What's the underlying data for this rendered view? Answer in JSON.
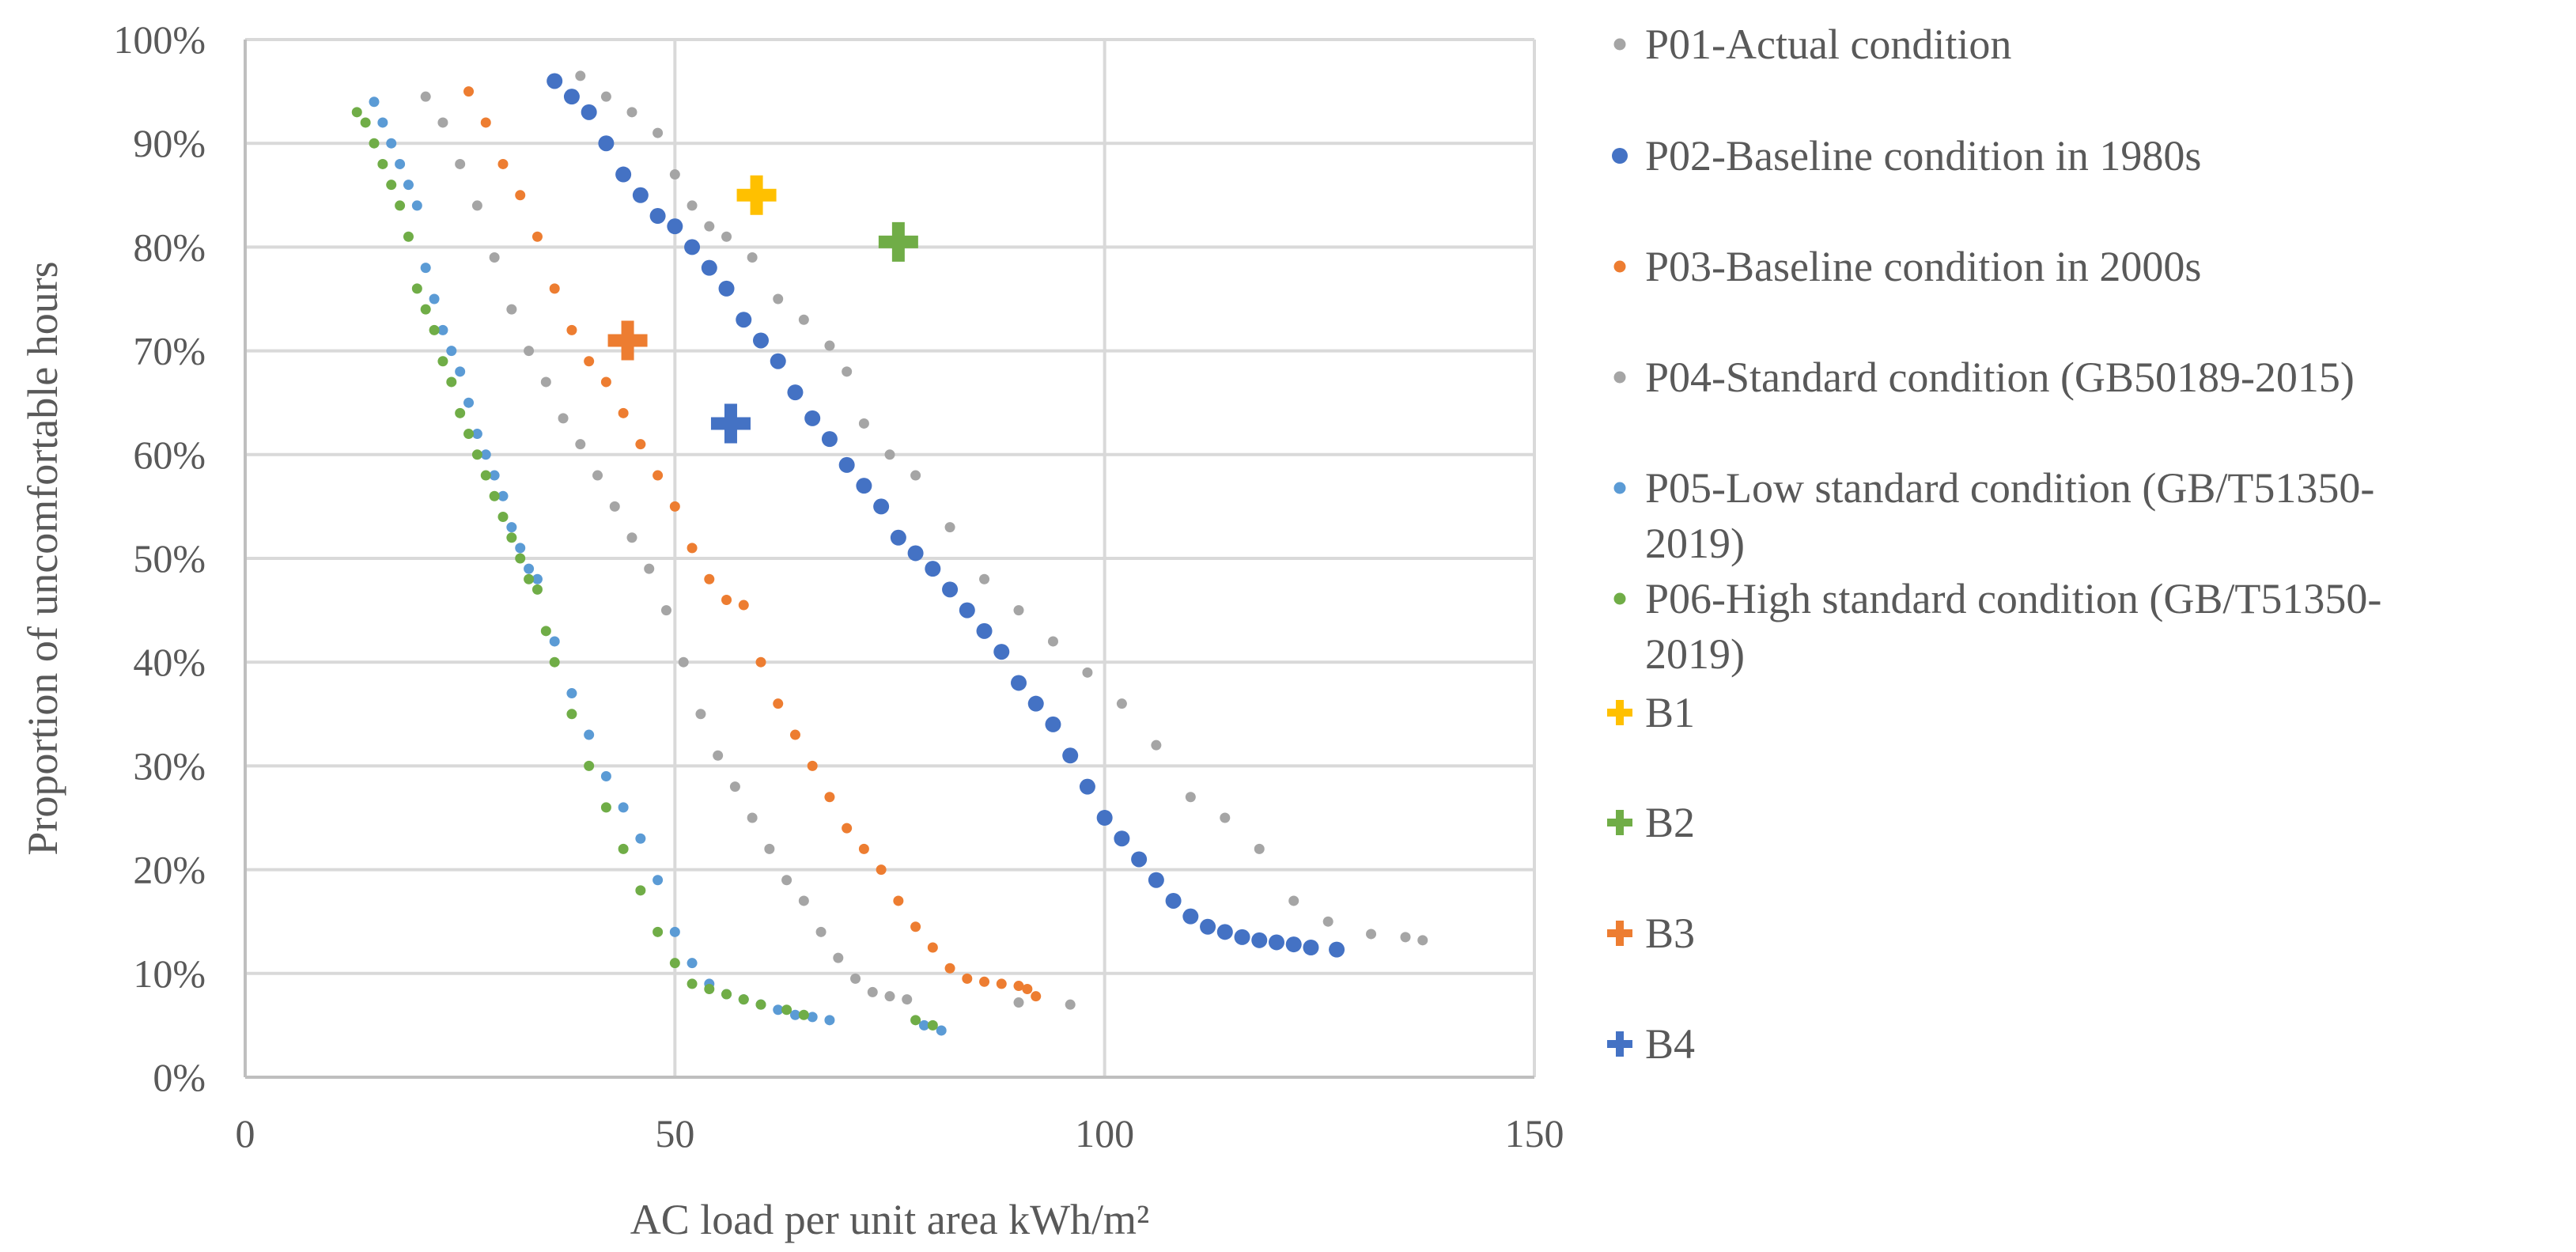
{
  "chart_data": {
    "type": "scatter",
    "title": "",
    "xlabel": "AC load per unit area kWh/m²",
    "ylabel": "Proportion of uncomfortable hours",
    "xlim": [
      0,
      150
    ],
    "ylim": [
      0,
      100
    ],
    "x_ticks": [
      0,
      50,
      100,
      150
    ],
    "x_tick_labels": [
      "0",
      "50",
      "100",
      "150"
    ],
    "y_ticks": [
      0,
      10,
      20,
      30,
      40,
      50,
      60,
      70,
      80,
      90,
      100
    ],
    "y_tick_labels": [
      "0%",
      "10%",
      "20%",
      "30%",
      "40%",
      "50%",
      "60%",
      "70%",
      "80%",
      "90%",
      "100%"
    ],
    "grid": true,
    "legend_position": "right",
    "series": [
      {
        "name": "P01-Actual condition",
        "marker": "dot",
        "size": "small",
        "color": "#A5A5A5",
        "legend_lines": [
          "P01-Actual condition"
        ],
        "x": [
          39,
          42,
          45,
          48,
          50,
          52,
          54,
          56,
          59,
          62,
          65,
          68,
          70,
          72,
          75,
          78,
          82,
          86,
          90,
          94,
          98,
          102,
          106,
          110,
          114,
          118,
          122,
          126,
          131,
          135,
          137
        ],
        "y": [
          96.5,
          94.5,
          93,
          91,
          87,
          84,
          82,
          81,
          79,
          75,
          73,
          70.5,
          68,
          63,
          60,
          58,
          53,
          48,
          45,
          42,
          39,
          36,
          32,
          27,
          25,
          22,
          17,
          15,
          13.8,
          13.5,
          13.2
        ]
      },
      {
        "name": "P02-Baseline condition in 1980s",
        "marker": "dot",
        "size": "large",
        "color": "#4472C4",
        "legend_lines": [
          "P02-Baseline condition in 1980s"
        ],
        "x": [
          36,
          38,
          40,
          42,
          44,
          46,
          48,
          50,
          52,
          54,
          56,
          58,
          60,
          62,
          64,
          66,
          68,
          70,
          72,
          74,
          76,
          78,
          80,
          82,
          84,
          86,
          88,
          90,
          92,
          94,
          96,
          98,
          100,
          102,
          104,
          106,
          108,
          110,
          112,
          114,
          116,
          118,
          120,
          122,
          124,
          127
        ],
        "y": [
          96,
          94.5,
          93,
          90,
          87,
          85,
          83,
          82,
          80,
          78,
          76,
          73,
          71,
          69,
          66,
          63.5,
          61.5,
          59,
          57,
          55,
          52,
          50.5,
          49,
          47,
          45,
          43,
          41,
          38,
          36,
          34,
          31,
          28,
          25,
          23,
          21,
          19,
          17,
          15.5,
          14.5,
          14,
          13.5,
          13.2,
          13,
          12.8,
          12.5,
          12.3
        ]
      },
      {
        "name": "P03-Baseline condition in 2000s",
        "marker": "dot",
        "size": "small",
        "color": "#ED7D31",
        "legend_lines": [
          "P03-Baseline condition in 2000s"
        ],
        "x": [
          26,
          28,
          30,
          32,
          34,
          36,
          38,
          40,
          42,
          44,
          46,
          48,
          50,
          52,
          54,
          56,
          58,
          60,
          62,
          64,
          66,
          68,
          70,
          72,
          74,
          76,
          78,
          80,
          82,
          84,
          86,
          88,
          90,
          91,
          92
        ],
        "y": [
          95,
          92,
          88,
          85,
          81,
          76,
          72,
          69,
          67,
          64,
          61,
          58,
          55,
          51,
          48,
          46,
          45.5,
          40,
          36,
          33,
          30,
          27,
          24,
          22,
          20,
          17,
          14.5,
          12.5,
          10.5,
          9.5,
          9.2,
          9,
          8.8,
          8.5,
          7.8
        ]
      },
      {
        "name": "P04-Standard condition (GB50189-2015)",
        "marker": "dot",
        "size": "small",
        "color": "#A5A5A5",
        "legend_lines": [
          "P04-Standard condition (GB50189-2015)"
        ],
        "x": [
          21,
          23,
          25,
          27,
          29,
          31,
          33,
          35,
          37,
          39,
          41,
          43,
          45,
          47,
          49,
          51,
          53,
          55,
          57,
          59,
          61,
          63,
          65,
          67,
          69,
          71,
          73,
          75,
          77,
          90,
          96
        ],
        "y": [
          94.5,
          92,
          88,
          84,
          79,
          74,
          70,
          67,
          63.5,
          61,
          58,
          55,
          52,
          49,
          45,
          40,
          35,
          31,
          28,
          25,
          22,
          19,
          17,
          14,
          11.5,
          9.5,
          8.2,
          7.8,
          7.5,
          7.2,
          7
        ]
      },
      {
        "name": "P05-Low standard condition (GB/T51350-2019)",
        "marker": "dot",
        "size": "small",
        "color": "#5B9BD5",
        "legend_lines": [
          "P05-Low standard condition (GB/T51350-",
          "2019)"
        ],
        "x": [
          15,
          16,
          17,
          18,
          19,
          20,
          21,
          22,
          23,
          24,
          25,
          26,
          27,
          28,
          29,
          30,
          31,
          32,
          33,
          34,
          36,
          38,
          40,
          42,
          44,
          46,
          48,
          50,
          52,
          54,
          56,
          58,
          60,
          62,
          64,
          66,
          68,
          79,
          81
        ],
        "y": [
          94,
          92,
          90,
          88,
          86,
          84,
          78,
          75,
          72,
          70,
          68,
          65,
          62,
          60,
          58,
          56,
          53,
          51,
          49,
          48,
          42,
          37,
          33,
          29,
          26,
          23,
          19,
          14,
          11,
          9,
          8,
          7.5,
          7,
          6.5,
          6,
          5.8,
          5.5,
          5,
          4.5
        ]
      },
      {
        "name": "P06-High standard condition (GB/T51350-2019)",
        "marker": "dot",
        "size": "small",
        "color": "#70AD47",
        "legend_lines": [
          "P06-High standard condition (GB/T51350-",
          "2019)"
        ],
        "x": [
          13,
          14,
          15,
          16,
          17,
          18,
          19,
          20,
          21,
          22,
          23,
          24,
          25,
          26,
          27,
          28,
          29,
          30,
          31,
          32,
          33,
          34,
          35,
          36,
          38,
          40,
          42,
          44,
          46,
          48,
          50,
          52,
          54,
          56,
          58,
          60,
          63,
          65,
          78,
          80
        ],
        "y": [
          93,
          92,
          90,
          88,
          86,
          84,
          81,
          76,
          74,
          72,
          69,
          67,
          64,
          62,
          60,
          58,
          56,
          54,
          52,
          50,
          48,
          47,
          43,
          40,
          35,
          30,
          26,
          22,
          18,
          14,
          11,
          9,
          8.5,
          8,
          7.5,
          7,
          6.5,
          6,
          5.5,
          5
        ]
      },
      {
        "name": "B1",
        "marker": "cross",
        "color": "#FFC000",
        "legend_lines": [
          "B1"
        ],
        "x": [
          59.5
        ],
        "y": [
          85
        ]
      },
      {
        "name": "B2",
        "marker": "cross",
        "color": "#70AD47",
        "legend_lines": [
          "B2"
        ],
        "x": [
          76
        ],
        "y": [
          80.5
        ]
      },
      {
        "name": "B3",
        "marker": "cross",
        "color": "#ED7D31",
        "legend_lines": [
          "B3"
        ],
        "x": [
          44.5
        ],
        "y": [
          71
        ]
      },
      {
        "name": "B4",
        "marker": "cross",
        "color": "#4472C4",
        "legend_lines": [
          "B4"
        ],
        "x": [
          56.5
        ],
        "y": [
          63
        ]
      }
    ]
  }
}
